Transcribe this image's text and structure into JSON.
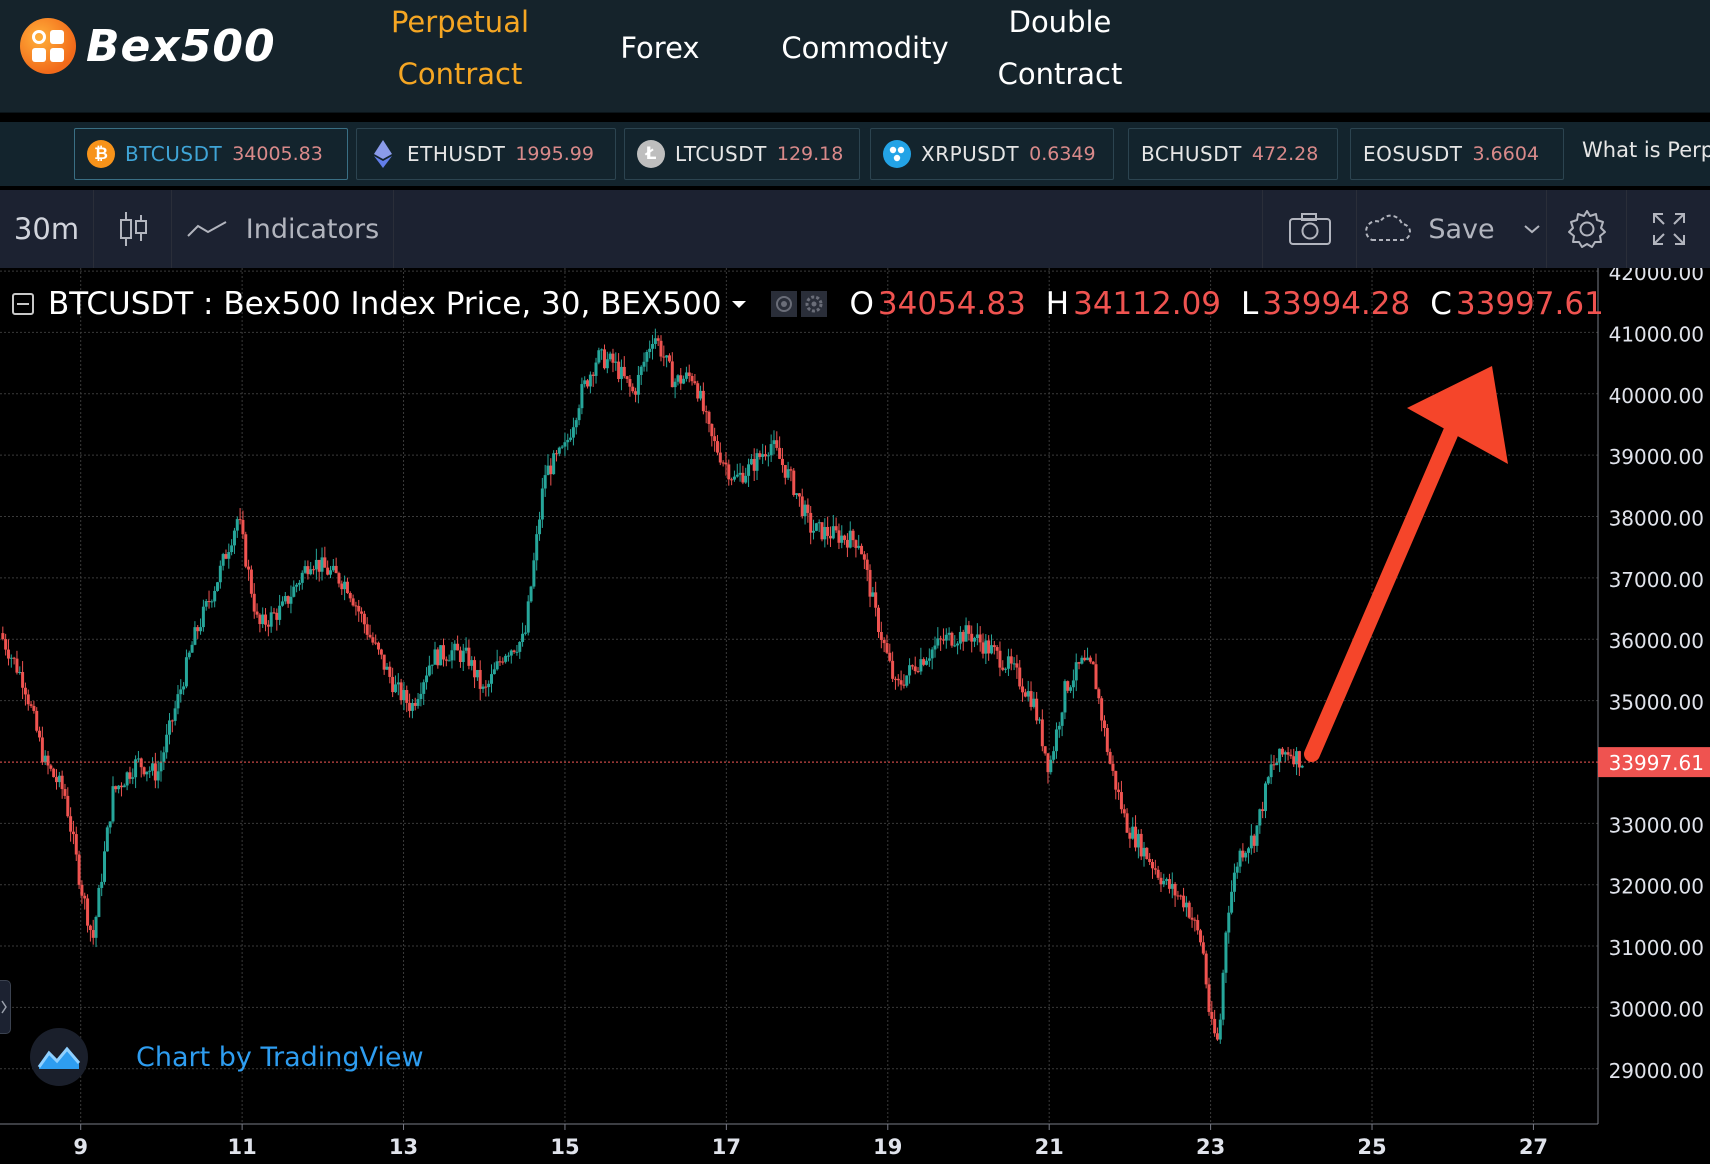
{
  "brand": {
    "name": "Bex500"
  },
  "nav": [
    {
      "label_line1": "Perpetual",
      "label_line2": "Contract",
      "active": true
    },
    {
      "label_line1": "Forex",
      "label_line2": "",
      "active": false
    },
    {
      "label_line1": "Commodity",
      "label_line2": "",
      "active": false
    },
    {
      "label_line1": "Double",
      "label_line2": "Contract",
      "active": false
    }
  ],
  "tickers": [
    {
      "symbol": "BTCUSDT",
      "price": "34005.83",
      "icon": "bitcoin-icon",
      "color": "#f7931a",
      "active": true
    },
    {
      "symbol": "ETHUSDT",
      "price": "1995.99",
      "icon": "ethereum-icon",
      "color": "#627eea",
      "active": false
    },
    {
      "symbol": "LTCUSDT",
      "price": "129.18",
      "icon": "litecoin-icon",
      "color": "#bebebe",
      "active": false
    },
    {
      "symbol": "XRPUSDT",
      "price": "0.6349",
      "icon": "ripple-icon",
      "color": "#23a3e6",
      "active": false
    },
    {
      "symbol": "BCHUSDT",
      "price": "472.28",
      "icon": "",
      "color": "",
      "active": false
    },
    {
      "symbol": "EOSUSDT",
      "price": "3.6604",
      "icon": "",
      "color": "",
      "active": false
    }
  ],
  "ticker_info": "What is Perp",
  "toolbar": {
    "interval": "30m",
    "indicators_label": "Indicators",
    "save_label": "Save",
    "icons": [
      "candlestick-icon",
      "indicators-icon",
      "camera-icon",
      "cloud-icon",
      "chevron-down-icon",
      "gear-icon",
      "fullscreen-icon"
    ]
  },
  "legend": {
    "title": "BTCUSDT : Bex500 Index Price, 30, BEX500",
    "open_label": "O",
    "open": "34054.83",
    "high_label": "H",
    "high": "34112.09",
    "low_label": "L",
    "low": "33994.28",
    "close_label": "C",
    "close": "33997.61"
  },
  "attribution": "Chart by TradingView",
  "colors": {
    "up": "#26a69a",
    "down": "#ef5350",
    "annotation_arrow": "#f5452a",
    "price_line": "#ef5350"
  },
  "chart_data": {
    "type": "candlestick",
    "symbol": "BTCUSDT",
    "interval": "30",
    "x_tick_labels": [
      "9",
      "11",
      "13",
      "15",
      "17",
      "19",
      "21",
      "23",
      "25",
      "27"
    ],
    "y_tick_labels": [
      "42000.00",
      "41000.00",
      "40000.00",
      "39000.00",
      "38000.00",
      "37000.00",
      "36000.00",
      "35000.00",
      "34000.00",
      "33000.00",
      "32000.00",
      "31000.00",
      "30000.00",
      "29000.00"
    ],
    "y_range": [
      28100,
      42050
    ],
    "x_range": [
      8.0,
      27.8
    ],
    "last_price": 33997.61,
    "last_price_label": "33997.61",
    "grid": true,
    "price_path": [
      [
        8.0,
        36100
      ],
      [
        8.3,
        35300
      ],
      [
        8.55,
        34000
      ],
      [
        8.8,
        33500
      ],
      [
        9.0,
        32000
      ],
      [
        9.15,
        31100
      ],
      [
        9.4,
        33500
      ],
      [
        9.7,
        34000
      ],
      [
        9.95,
        33800
      ],
      [
        10.2,
        35000
      ],
      [
        10.4,
        36000
      ],
      [
        10.7,
        37000
      ],
      [
        10.95,
        38000
      ],
      [
        11.2,
        36200
      ],
      [
        11.5,
        36500
      ],
      [
        11.85,
        37300
      ],
      [
        12.3,
        36900
      ],
      [
        12.6,
        36000
      ],
      [
        12.9,
        35200
      ],
      [
        13.1,
        34900
      ],
      [
        13.35,
        35700
      ],
      [
        13.6,
        35800
      ],
      [
        13.8,
        35700
      ],
      [
        14.0,
        35100
      ],
      [
        14.25,
        35800
      ],
      [
        14.5,
        36000
      ],
      [
        14.75,
        38700
      ],
      [
        15.0,
        39100
      ],
      [
        15.2,
        40000
      ],
      [
        15.4,
        40600
      ],
      [
        15.6,
        40500
      ],
      [
        15.85,
        40000
      ],
      [
        16.1,
        41000
      ],
      [
        16.35,
        40200
      ],
      [
        16.6,
        40300
      ],
      [
        16.8,
        39300
      ],
      [
        17.1,
        38600
      ],
      [
        17.3,
        38800
      ],
      [
        17.55,
        39200
      ],
      [
        17.8,
        38600
      ],
      [
        18.05,
        37800
      ],
      [
        18.35,
        37700
      ],
      [
        18.65,
        37600
      ],
      [
        18.85,
        36400
      ],
      [
        19.1,
        35200
      ],
      [
        19.35,
        35600
      ],
      [
        19.7,
        36000
      ],
      [
        20.0,
        36100
      ],
      [
        20.3,
        35800
      ],
      [
        20.55,
        35500
      ],
      [
        20.8,
        35000
      ],
      [
        21.0,
        33900
      ],
      [
        21.2,
        35200
      ],
      [
        21.4,
        35600
      ],
      [
        21.55,
        35500
      ],
      [
        21.75,
        34000
      ],
      [
        21.95,
        33000
      ],
      [
        22.2,
        32500
      ],
      [
        22.45,
        32000
      ],
      [
        22.7,
        31700
      ],
      [
        22.9,
        31000
      ],
      [
        23.0,
        29700
      ],
      [
        23.1,
        29400
      ],
      [
        23.2,
        31500
      ],
      [
        23.35,
        32500
      ],
      [
        23.55,
        32800
      ],
      [
        23.75,
        33900
      ],
      [
        23.95,
        34200
      ],
      [
        24.15,
        34000
      ]
    ]
  }
}
